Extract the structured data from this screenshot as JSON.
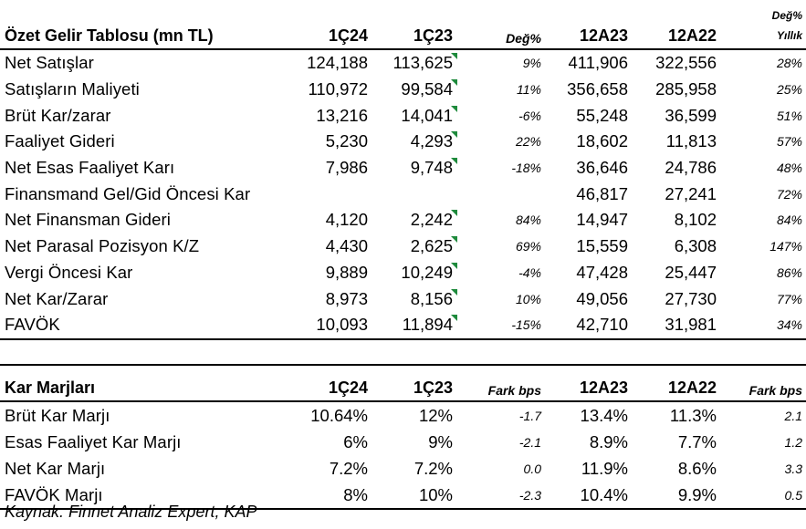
{
  "income": {
    "header": {
      "title": "Özet Gelir Tablosu (mn TL)",
      "q1": "1Ç24",
      "q2": "1Ç23",
      "chg": "Değ%",
      "y1": "12A23",
      "y2": "12A22",
      "ychg_top": "Değ%",
      "ychg_bottom": "Yıllık"
    },
    "rows": [
      {
        "label": "Net Satışlar",
        "q1": "124,188",
        "q2": "113,625",
        "chg": "9%",
        "y1": "411,906",
        "y2": "322,556",
        "ychg": "28%"
      },
      {
        "label": "Satışların Maliyeti",
        "q1": "110,972",
        "q2": "99,584",
        "chg": "11%",
        "y1": "356,658",
        "y2": "285,958",
        "ychg": "25%"
      },
      {
        "label": "Brüt Kar/zarar",
        "q1": "13,216",
        "q2": "14,041",
        "chg": "-6%",
        "y1": "55,248",
        "y2": "36,599",
        "ychg": "51%"
      },
      {
        "label": "Faaliyet Gideri",
        "q1": "5,230",
        "q2": "4,293",
        "chg": "22%",
        "y1": "18,602",
        "y2": "11,813",
        "ychg": "57%"
      },
      {
        "label": "Net Esas Faaliyet Karı",
        "q1": "7,986",
        "q2": "9,748",
        "chg": "-18%",
        "y1": "36,646",
        "y2": "24,786",
        "ychg": "48%"
      },
      {
        "label": "Finansmand Gel/Gid Öncesi Kar",
        "q1": "",
        "q2": "",
        "chg": "",
        "y1": "46,817",
        "y2": "27,241",
        "ychg": "72%"
      },
      {
        "label": "Net Finansman Gideri",
        "q1": "4,120",
        "q2": "2,242",
        "chg": "84%",
        "y1": "14,947",
        "y2": "8,102",
        "ychg": "84%"
      },
      {
        "label": "Net Parasal Pozisyon K/Z",
        "q1": "4,430",
        "q2": "2,625",
        "chg": "69%",
        "y1": "15,559",
        "y2": "6,308",
        "ychg": "147%"
      },
      {
        "label": "Vergi Öncesi Kar",
        "q1": "9,889",
        "q2": "10,249",
        "chg": "-4%",
        "y1": "47,428",
        "y2": "25,447",
        "ychg": "86%"
      },
      {
        "label": "Net Kar/Zarar",
        "q1": "8,973",
        "q2": "8,156",
        "chg": "10%",
        "y1": "49,056",
        "y2": "27,730",
        "ychg": "77%"
      },
      {
        "label": "FAVÖK",
        "q1": "10,093",
        "q2": "11,894",
        "chg": "-15%",
        "y1": "42,710",
        "y2": "31,981",
        "ychg": "34%"
      }
    ]
  },
  "margins": {
    "header": {
      "title": "Kar Marjları",
      "q1": "1Ç24",
      "q2": "1Ç23",
      "chg": "Fark bps",
      "y1": "12A23",
      "y2": "12A22",
      "ychg": "Fark bps"
    },
    "rows": [
      {
        "label": "Brüt Kar Marjı",
        "q1": "10.64%",
        "q2": "12%",
        "chg": "-1.7",
        "y1": "13.4%",
        "y2": "11.3%",
        "ychg": "2.1"
      },
      {
        "label": "Esas Faaliyet Kar Marjı",
        "q1": "6%",
        "q2": "9%",
        "chg": "-2.1",
        "y1": "8.9%",
        "y2": "7.7%",
        "ychg": "1.2"
      },
      {
        "label": "Net Kar Marjı",
        "q1": "7.2%",
        "q2": "7.2%",
        "chg": "0.0",
        "y1": "11.9%",
        "y2": "8.6%",
        "ychg": "3.3"
      },
      {
        "label": "FAVÖK Marjı",
        "q1": "8%",
        "q2": "10%",
        "chg": "-2.3",
        "y1": "10.4%",
        "y2": "9.9%",
        "ychg": "0.5"
      }
    ]
  },
  "source": "Kaynak: Finnet Analiz Expert, KAP",
  "colors": {
    "cell_marker": "#1e8a3c"
  }
}
